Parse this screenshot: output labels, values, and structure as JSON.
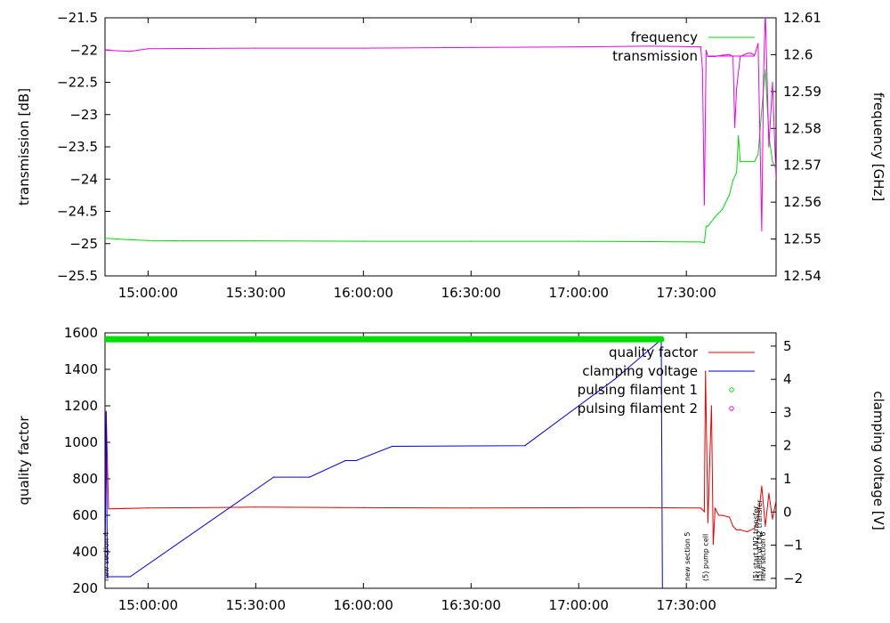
{
  "chart_data": [
    {
      "type": "line",
      "xlabel": "",
      "ylabel": "transmission [dB]",
      "y2label": "frequency [GHz]",
      "x_unit": "time (HH:MM:SS)",
      "xlim": [
        "14:48:00",
        "17:55:00"
      ],
      "ylim": [
        -25.5,
        -21.5
      ],
      "y2lim": [
        12.54,
        12.61
      ],
      "x_ticks": [
        "15:00:00",
        "15:30:00",
        "16:00:00",
        "16:30:00",
        "17:00:00",
        "17:30:00"
      ],
      "y_ticks": [
        "-21.5",
        "-22",
        "-22.5",
        "-23",
        "-23.5",
        "-24",
        "-24.5",
        "-25",
        "-25.5"
      ],
      "y2_ticks": [
        "12.61",
        "12.6",
        "12.59",
        "12.58",
        "12.57",
        "12.56",
        "12.55",
        "12.54"
      ],
      "legend_position": "top-right",
      "legend": [
        "frequency",
        "transmission"
      ],
      "series": [
        {
          "name": "frequency",
          "axis": "right",
          "color": "#00dd00",
          "x": [
            "14:48:00",
            "14:55:00",
            "15:00:00",
            "15:10:00",
            "15:30:00",
            "16:00:00",
            "16:30:00",
            "17:00:00",
            "17:20:00",
            "17:34:00",
            "17:35:00",
            "17:35:30",
            "17:36:00",
            "17:38:00",
            "17:40:00",
            "17:42:00",
            "17:43:00",
            "17:44:00",
            "17:44:30",
            "17:45:00",
            "17:47:00",
            "17:48:00",
            "17:49:00",
            "17:50:00",
            "17:51:00",
            "17:52:00",
            "17:53:00",
            "17:54:00",
            "17:55:00"
          ],
          "y": [
            12.5502,
            12.5498,
            12.5496,
            12.5495,
            12.5495,
            12.5494,
            12.5494,
            12.5494,
            12.5493,
            12.5492,
            12.549,
            12.5535,
            12.5535,
            12.556,
            12.558,
            12.562,
            12.566,
            12.568,
            12.578,
            12.571,
            12.571,
            12.571,
            12.571,
            12.573,
            12.585,
            12.596,
            12.578,
            12.571,
            12.569
          ]
        },
        {
          "name": "transmission",
          "axis": "left",
          "color": "#ee00ee",
          "x": [
            "14:48:00",
            "14:55:00",
            "15:00:00",
            "15:30:00",
            "16:00:00",
            "16:30:00",
            "17:00:00",
            "17:20:00",
            "17:34:00",
            "17:34:30",
            "17:35:00",
            "17:35:30",
            "17:36:00",
            "17:38:00",
            "17:40:00",
            "17:42:00",
            "17:43:00",
            "17:43:30",
            "17:44:00",
            "17:45:00",
            "17:47:00",
            "17:48:00",
            "17:49:00",
            "17:50:00",
            "17:51:00",
            "17:51:30",
            "17:52:00",
            "17:53:00",
            "17:54:00",
            "17:55:00"
          ],
          "y": [
            -22.0,
            -22.02,
            -21.98,
            -21.97,
            -21.97,
            -21.96,
            -21.95,
            -21.94,
            -21.95,
            -22.3,
            -24.4,
            -22.0,
            -22.1,
            -22.1,
            -22.08,
            -22.07,
            -22.1,
            -23.2,
            -22.6,
            -22.1,
            -22.05,
            -22.05,
            -22.08,
            -21.9,
            -24.8,
            -22.4,
            -21.4,
            -23.5,
            -22.5,
            -24.0
          ]
        }
      ]
    },
    {
      "type": "line",
      "xlabel": "",
      "ylabel": "quality factor",
      "y2label": "clamping voltage [V]",
      "x_unit": "time (HH:MM:SS)",
      "xlim": [
        "14:48:00",
        "17:55:00"
      ],
      "ylim": [
        200,
        1600
      ],
      "y2lim": [
        -2.3,
        5.4
      ],
      "x_ticks": [
        "15:00:00",
        "15:30:00",
        "16:00:00",
        "16:30:00",
        "17:00:00",
        "17:30:00"
      ],
      "y_ticks": [
        "1600",
        "1400",
        "1200",
        "1000",
        "800",
        "600",
        "400",
        "200"
      ],
      "y2_ticks": [
        "5",
        "4",
        "3",
        "2",
        "1",
        "0",
        "-1",
        "-2"
      ],
      "legend_position": "top-right",
      "legend": [
        "quality factor",
        "clamping voltage",
        "pulsing filament 1",
        "pulsing filament 2"
      ],
      "series": [
        {
          "name": "quality factor",
          "axis": "left",
          "color": "#ee0000",
          "x": [
            "14:48:00",
            "14:48:20",
            "14:49:00",
            "15:00:00",
            "15:30:00",
            "16:00:00",
            "16:30:00",
            "17:00:00",
            "17:20:00",
            "17:34:00",
            "17:35:00",
            "17:35:20",
            "17:36:00",
            "17:37:00",
            "17:37:30",
            "17:38:00",
            "17:39:00",
            "17:40:00",
            "17:42:00",
            "17:43:00",
            "17:44:00",
            "17:45:00",
            "17:47:00",
            "17:49:00",
            "17:50:00",
            "17:51:00",
            "17:52:00",
            "17:53:00",
            "17:54:00",
            "17:55:00"
          ],
          "y": [
            640,
            1170,
            635,
            640,
            645,
            642,
            640,
            642,
            642,
            640,
            620,
            1390,
            560,
            1200,
            440,
            640,
            600,
            600,
            590,
            540,
            520,
            520,
            510,
            530,
            580,
            760,
            540,
            720,
            580,
            680
          ]
        },
        {
          "name": "clamping voltage",
          "axis": "right",
          "color": "#0000ee",
          "x": [
            "14:48:00",
            "14:48:20",
            "14:48:40",
            "14:55:00",
            "15:35:00",
            "15:45:00",
            "15:55:00",
            "15:58:00",
            "16:08:00",
            "16:45:00",
            "17:10:00",
            "17:23:00",
            "17:23:20"
          ],
          "y": [
            -2.1,
            3.0,
            -1.95,
            -1.95,
            1.05,
            1.05,
            1.55,
            1.55,
            1.98,
            2.0,
            4.0,
            5.2,
            -2.3
          ]
        },
        {
          "name": "pulsing filament 1",
          "axis": "left",
          "color": "#00dd00",
          "marker": "circle",
          "x": [
            "14:48:00",
            "17:23:00"
          ],
          "y": [
            1565,
            1565
          ]
        },
        {
          "name": "pulsing filament 2",
          "axis": "left",
          "color": "#ee00ee",
          "marker": "circle",
          "x": [],
          "y": []
        }
      ],
      "annotations": [
        {
          "text": "new section 4",
          "x": "14:48:00"
        },
        {
          "text": "new section 5",
          "x": "17:30:00"
        },
        {
          "text": "(5) pump cell",
          "x": "17:35:00"
        },
        {
          "text": "(5) start LN2 transfer",
          "x": "17:49:00"
        },
        {
          "text": "(5) end of LN2 transfer",
          "x": "17:50:00"
        },
        {
          "text": "new section 6",
          "x": "17:51:00"
        }
      ]
    }
  ]
}
